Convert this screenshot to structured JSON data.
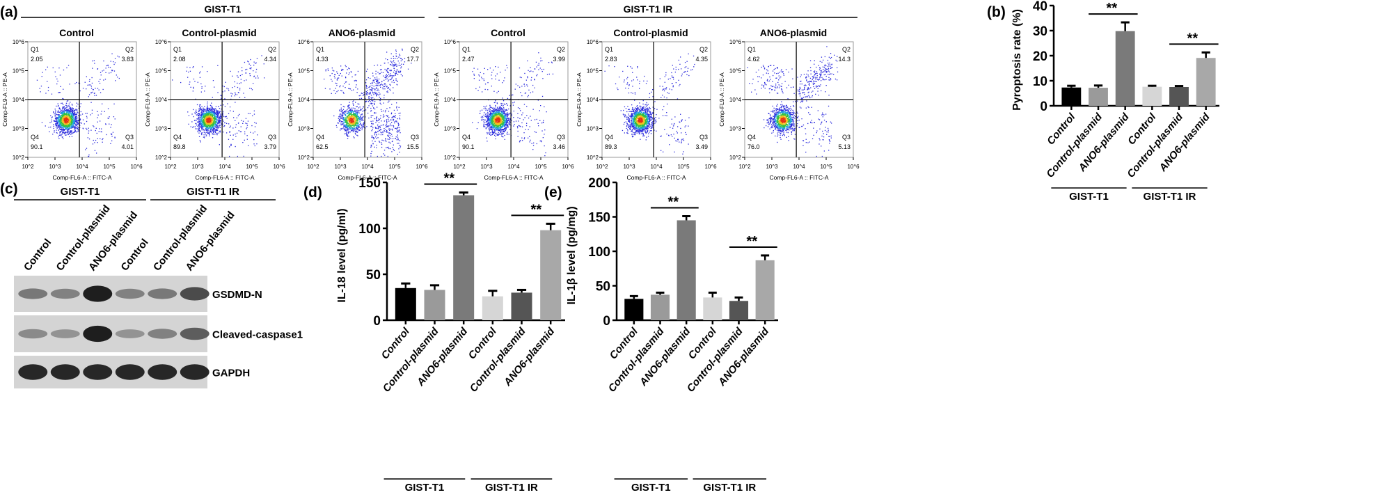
{
  "panel_labels": {
    "a": "(a)",
    "b": "(b)",
    "c": "(c)",
    "d": "(d)",
    "e": "(e)"
  },
  "groups": [
    "GIST-T1",
    "GIST-T1 IR"
  ],
  "categories": [
    "Control",
    "Control-plasmid",
    "ANO6-plasmid",
    "Control",
    "Control-plasmid",
    "ANO6-plasmid"
  ],
  "bar_colors": [
    "#000000",
    "#9a9a9a",
    "#7a7a7a",
    "#d6d6d6",
    "#555555",
    "#a8a8a8"
  ],
  "significance": "**",
  "chart_data": [
    {
      "type": "scatter",
      "panel": "a",
      "xlabel": "Comp-FL6-A :: FITC-A",
      "ylabel": "Comp-FL9-A :: PE-A",
      "x_scale": "log",
      "y_scale": "log",
      "xlim": [
        100,
        1000000
      ],
      "ylim": [
        100,
        1000000
      ],
      "tick_labels": [
        "10^2",
        "10^3",
        "10^4",
        "10^5",
        "10^6"
      ],
      "quadrant_names": [
        "Q1",
        "Q2",
        "Q3",
        "Q4"
      ],
      "plots": [
        {
          "group": "GIST-T1",
          "title": "Control",
          "Q1": "2.05",
          "Q2": "3.83",
          "Q3": "4.01",
          "Q4": "90.1"
        },
        {
          "group": "GIST-T1",
          "title": "Control-plasmid",
          "Q1": "2.08",
          "Q2": "4.34",
          "Q3": "3.79",
          "Q4": "89.8"
        },
        {
          "group": "GIST-T1",
          "title": "ANO6-plasmid",
          "Q1": "4.33",
          "Q2": "17.7",
          "Q3": "15.5",
          "Q4": "62.5"
        },
        {
          "group": "GIST-T1 IR",
          "title": "Control",
          "Q1": "2.47",
          "Q2": "3.99",
          "Q3": "3.46",
          "Q4": "90.1"
        },
        {
          "group": "GIST-T1 IR",
          "title": "Control-plasmid",
          "Q1": "2.83",
          "Q2": "4.35",
          "Q3": "3.49",
          "Q4": "89.3"
        },
        {
          "group": "GIST-T1 IR",
          "title": "ANO6-plasmid",
          "Q1": "4.62",
          "Q2": "14.3",
          "Q3": "5.13",
          "Q4": "76.0"
        }
      ]
    },
    {
      "type": "bar",
      "panel": "b",
      "ylabel": "Pyroptosis rate (%)",
      "ylim": [
        0,
        40
      ],
      "yticks": [
        0,
        10,
        20,
        30,
        40
      ],
      "values": [
        7.3,
        7.2,
        29.8,
        7.6,
        7.5,
        19.1
      ],
      "errors": [
        0.7,
        0.9,
        3.5,
        0.4,
        0.4,
        2.2
      ]
    },
    {
      "type": "bar",
      "panel": "d",
      "ylabel": "IL-18 level (pg/ml)",
      "ylim": [
        0,
        150
      ],
      "yticks": [
        0,
        50,
        100,
        150
      ],
      "values": [
        35,
        33,
        136,
        26,
        30,
        98
      ],
      "errors": [
        5,
        5,
        3,
        6,
        3,
        7
      ]
    },
    {
      "type": "bar",
      "panel": "e",
      "ylabel": "IL-1β level (pg/mg)",
      "ylim": [
        0,
        200
      ],
      "yticks": [
        0,
        50,
        100,
        150,
        200
      ],
      "values": [
        31,
        37,
        145,
        33,
        28,
        87
      ],
      "errors": [
        4,
        3,
        6,
        7,
        5,
        7
      ]
    }
  ],
  "western_blot": {
    "lanes": [
      "Control",
      "Control-plasmid",
      "ANO6-plasmid",
      "Control",
      "Control-plasmid",
      "ANO6-plasmid"
    ],
    "rows": [
      {
        "label": "GSDMD-N",
        "intensity": [
          0.45,
          0.4,
          0.95,
          0.4,
          0.45,
          0.7
        ]
      },
      {
        "label": "Cleaved-caspase1",
        "intensity": [
          0.35,
          0.3,
          0.95,
          0.3,
          0.4,
          0.6
        ]
      },
      {
        "label": "GAPDH",
        "intensity": [
          0.9,
          0.9,
          0.9,
          0.9,
          0.9,
          0.9
        ]
      }
    ]
  }
}
